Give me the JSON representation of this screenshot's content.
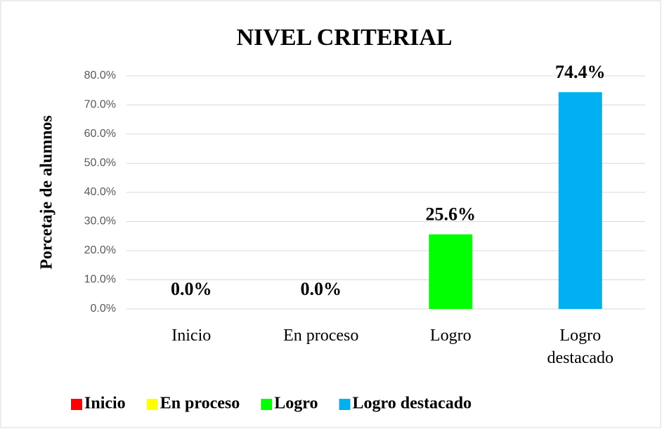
{
  "chart_data": {
    "type": "bar",
    "title": "NIVEL CRITERIAL",
    "y_label": "Porcetaje de alumnos",
    "categories": [
      "Inicio",
      "En proceso",
      "Logro",
      "Logro destacado"
    ],
    "values": [
      0,
      0,
      25.6,
      74.4
    ],
    "value_labels": [
      "0.0%",
      "0.0%",
      "25.6%",
      "74.4%"
    ],
    "colors": [
      "#ff0000",
      "#ffff00",
      "#00ff00",
      "#00b0f0"
    ],
    "ylim": [
      0,
      80
    ],
    "yticks": [
      {
        "value": 0,
        "label": "0.0%"
      },
      {
        "value": 10,
        "label": "10.0%"
      },
      {
        "value": 20,
        "label": "20.0%"
      },
      {
        "value": 30,
        "label": "30.0%"
      },
      {
        "value": 40,
        "label": "40.0%"
      },
      {
        "value": 50,
        "label": "50.0%"
      },
      {
        "value": 60,
        "label": "60.0%"
      },
      {
        "value": 70,
        "label": "70.0%"
      },
      {
        "value": 80,
        "label": "80.0%"
      }
    ],
    "grid": true,
    "legend": "bottom"
  }
}
